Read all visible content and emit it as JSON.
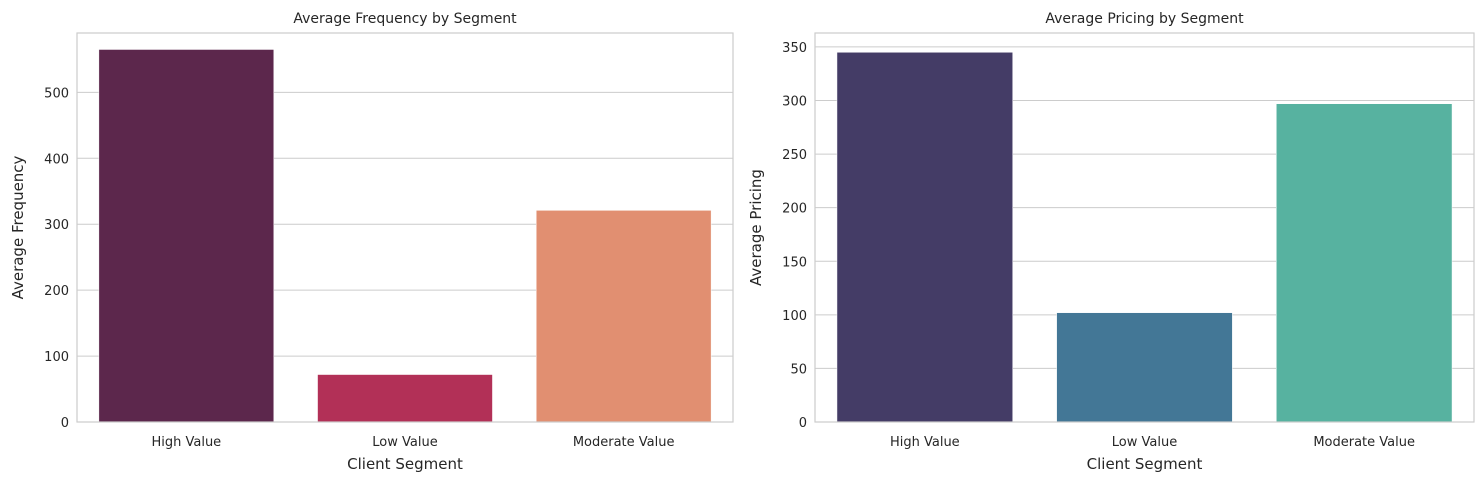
{
  "chart_data": [
    {
      "type": "bar",
      "title": "Average Frequency by Segment",
      "xlabel": "Client Segment",
      "ylabel": "Average Frequency",
      "categories": [
        "High Value",
        "Low Value",
        "Moderate Value"
      ],
      "values": [
        565,
        72,
        321
      ],
      "colors": [
        "#5c274c",
        "#b23057",
        "#e18f71"
      ],
      "ylim": [
        0,
        590
      ],
      "yticks": [
        0,
        100,
        200,
        300,
        400,
        500
      ],
      "grid": true,
      "legend": "none"
    },
    {
      "type": "bar",
      "title": "Average Pricing by Segment",
      "xlabel": "Client Segment",
      "ylabel": "Average Pricing",
      "categories": [
        "High Value",
        "Low Value",
        "Moderate Value"
      ],
      "values": [
        345,
        102,
        297
      ],
      "colors": [
        "#443c66",
        "#437796",
        "#57b2a0"
      ],
      "ylim": [
        0,
        363
      ],
      "yticks": [
        0,
        50,
        100,
        150,
        200,
        250,
        300,
        350
      ],
      "grid": true,
      "legend": "none"
    }
  ]
}
